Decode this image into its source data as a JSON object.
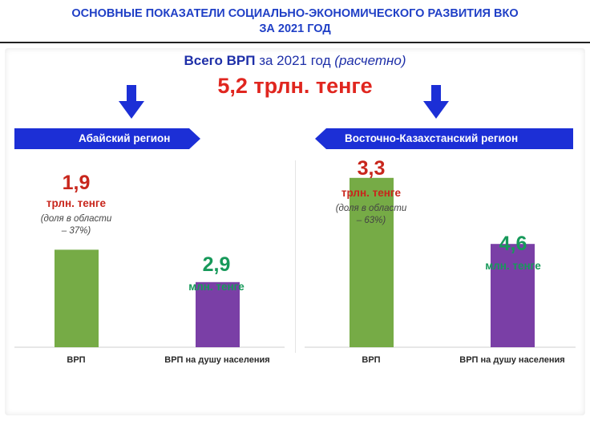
{
  "header": {
    "line1": "ОСНОВНЫЕ ПОКАЗАТЕЛИ СОЦИАЛЬНО-ЭКОНОМИЧЕСКОГО РАЗВИТИЯ ВКО",
    "line2": "ЗА 2021 ГОД"
  },
  "total": {
    "label_bold": "Всего ВРП",
    "label_rest": " за 2021 год ",
    "label_italic": "(расчетно)",
    "value": "5,2 трлн. тенге"
  },
  "colors": {
    "title": "#1f3fc6",
    "banner": "#1c2fd6",
    "total_value": "#e0261f",
    "grp_bar": "#76ab46",
    "per_capita_bar": "#7a3fa6",
    "grp_text": "#c8261c",
    "per_capita_text": "#17995a"
  },
  "chart_data": [
    {
      "type": "bar",
      "title": "Абайский регион",
      "categories": [
        "ВРП",
        "ВРП на душу населения"
      ],
      "values": [
        1.9,
        2.9
      ],
      "value_labels": [
        "1,9",
        "2,9"
      ],
      "units": [
        "трлн. тенге",
        "млн. тенге"
      ],
      "notes": [
        "(доля в области",
        "– 37%)"
      ]
    },
    {
      "type": "bar",
      "title": "Восточно-Казахстанский регион",
      "categories": [
        "ВРП",
        "ВРП на душу населения"
      ],
      "values": [
        3.3,
        4.6
      ],
      "value_labels": [
        "3,3",
        "4,6"
      ],
      "units": [
        "трлн. тенге",
        "млн. тенге"
      ],
      "notes": [
        "(доля в области",
        "– 63%)"
      ]
    }
  ]
}
